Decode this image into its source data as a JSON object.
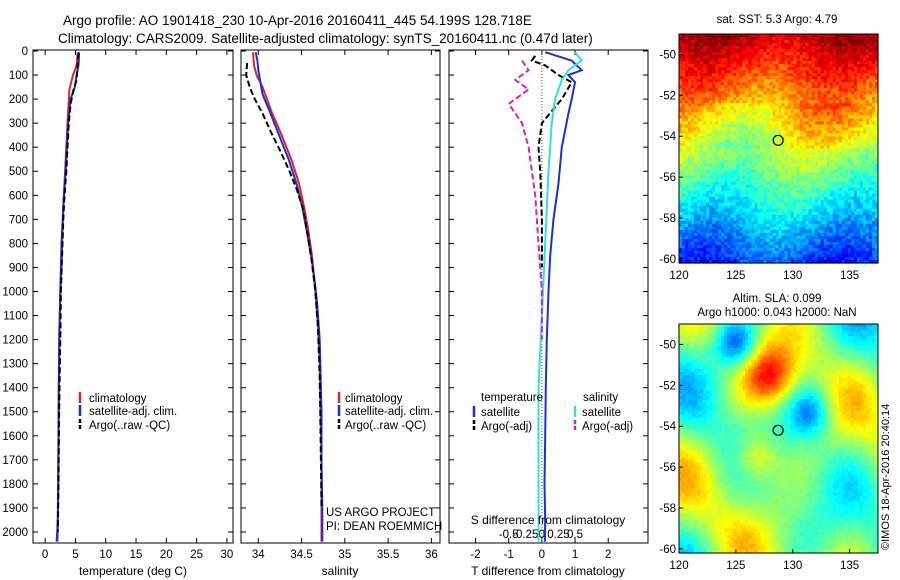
{
  "header": {
    "line1": "Argo profile: AO 1901418_230 10-Apr-2016 20160411_445 54.199S 128.718E",
    "line2": "Climatology: CARS2009. Satellite-adjusted climatology: synTS_20160411.nc (0.47d later)"
  },
  "colors": {
    "climatology": "#e0202a",
    "satellite": "#1a2fd6",
    "argo": "#000000",
    "sat_s": "#30e0e0",
    "argo_s": "#d020d0"
  },
  "depth_ticks": [
    "0",
    "100",
    "200",
    "300",
    "400",
    "500",
    "600",
    "700",
    "800",
    "900",
    "1000",
    "1100",
    "1200",
    "1300",
    "1400",
    "1500",
    "1600",
    "1700",
    "1800",
    "1900",
    "2000"
  ],
  "chart_data": [
    {
      "type": "line",
      "id": "temperature",
      "xlabel": "temperature (deg C)",
      "xlim": [
        -2,
        31
      ],
      "ylim": [
        2050,
        0
      ],
      "xticks": [
        "0",
        "5",
        "10",
        "15",
        "20",
        "25",
        "30"
      ],
      "legend": [
        "climatology",
        "satellite-adj. clim.",
        "Argo(..raw -QC)"
      ],
      "series": [
        {
          "name": "climatology",
          "color": "#e0202a",
          "style": "solid",
          "x": [
            5.4,
            5.2,
            4.6,
            4.0,
            3.8,
            3.6,
            3.4,
            3.2,
            3.0,
            2.8,
            2.7,
            2.5,
            2.4,
            2.3,
            2.25,
            2.2,
            2.15,
            2.1,
            2.05
          ],
          "y": [
            5,
            60,
            100,
            160,
            250,
            350,
            450,
            550,
            650,
            800,
            900,
            1000,
            1100,
            1200,
            1400,
            1600,
            1800,
            1950,
            2040
          ]
        },
        {
          "name": "satellite-adj. clim.",
          "color": "#1a2fd6",
          "style": "solid",
          "x": [
            5.6,
            5.5,
            5.2,
            4.9,
            4.2,
            3.8,
            3.6,
            3.4,
            3.1,
            2.9,
            2.7,
            2.6,
            2.5,
            2.35,
            2.25,
            2.2,
            2.15,
            2.1,
            2.0,
            1.9
          ],
          "y": [
            5,
            60,
            100,
            150,
            200,
            300,
            400,
            500,
            600,
            700,
            800,
            900,
            1000,
            1200,
            1400,
            1600,
            1800,
            1950,
            2000,
            2040
          ]
        },
        {
          "name": "Argo(..raw -QC)",
          "color": "#000000",
          "style": "dash",
          "x": [
            5.5,
            5.4,
            5.3,
            5.2,
            4.7,
            4.2,
            3.9,
            3.7,
            3.5,
            3.2,
            3.0,
            2.8,
            2.6,
            2.5,
            2.3,
            2.2,
            2.1
          ],
          "y": [
            10,
            40,
            80,
            120,
            160,
            220,
            300,
            400,
            500,
            600,
            700,
            850,
            1000,
            1200,
            1500,
            1800,
            2000
          ]
        }
      ]
    },
    {
      "type": "line",
      "id": "salinity",
      "xlabel": "salinity",
      "xlim": [
        33.8,
        36.1
      ],
      "ylim": [
        2050,
        0
      ],
      "xticks": [
        "34",
        "34.5",
        "35",
        "35.5",
        "36"
      ],
      "legend": [
        "climatology",
        "satellite-adj. clim.",
        "Argo(..raw -QC)"
      ],
      "series": [
        {
          "name": "climatology",
          "color": "#e0202a",
          "style": "solid",
          "x": [
            33.94,
            33.95,
            33.98,
            34.05,
            34.15,
            34.27,
            34.38,
            34.47,
            34.53,
            34.58,
            34.62,
            34.66,
            34.69,
            34.71,
            34.72,
            34.73,
            34.73,
            34.73
          ],
          "y": [
            5,
            60,
            100,
            150,
            250,
            350,
            450,
            550,
            650,
            750,
            850,
            1000,
            1150,
            1300,
            1500,
            1700,
            1900,
            2040
          ]
        },
        {
          "name": "satellite-adj. clim.",
          "color": "#1a2fd6",
          "style": "solid",
          "x": [
            33.97,
            33.99,
            34.0,
            34.02,
            34.05,
            34.13,
            34.24,
            34.35,
            34.44,
            34.51,
            34.56,
            34.61,
            34.65,
            34.68,
            34.71,
            34.72,
            34.73,
            34.73,
            34.74,
            34.74
          ],
          "y": [
            5,
            40,
            80,
            120,
            180,
            250,
            350,
            450,
            550,
            650,
            750,
            850,
            950,
            1050,
            1200,
            1350,
            1500,
            1700,
            1900,
            2040
          ]
        },
        {
          "name": "Argo(..raw -QC)",
          "color": "#000000",
          "style": "dash",
          "x": [
            33.87,
            33.86,
            33.9,
            33.96,
            34.05,
            34.15,
            34.26,
            34.36,
            34.45,
            34.52,
            34.57,
            34.62,
            34.66,
            34.69,
            34.71,
            34.72,
            34.73
          ],
          "y": [
            50,
            100,
            150,
            200,
            260,
            340,
            420,
            500,
            580,
            660,
            760,
            880,
            1000,
            1150,
            1350,
            1600,
            1900
          ]
        }
      ]
    },
    {
      "type": "line",
      "id": "difference",
      "xlabel": "T difference from climatology",
      "xlabel2": "S difference from climatology",
      "xlim": [
        -2.8,
        3.2
      ],
      "ylim": [
        2050,
        0
      ],
      "xticks": [
        "-2",
        "-1",
        "0",
        "1",
        "2"
      ],
      "xticks2": [
        "-0.5",
        "-0.25",
        "0",
        "0.25",
        "0.5"
      ],
      "legend_headers": [
        "temperature",
        "salinity"
      ],
      "legend": [
        "satellite",
        "Argo(-adj)",
        "satellite",
        "Argo(-adj)"
      ],
      "series": [
        {
          "name": "satellite",
          "group": "temperature",
          "color": "#1a2fd6",
          "style": "solid",
          "x": [
            0.1,
            0.9,
            1.2,
            0.8,
            1.0,
            0.9,
            0.8,
            0.6,
            0.5,
            0.35,
            0.25,
            0.2,
            0.15,
            0.12,
            0.1,
            0.08,
            0.1,
            0.09
          ],
          "y": [
            5,
            40,
            80,
            100,
            130,
            200,
            260,
            400,
            550,
            700,
            850,
            1000,
            1200,
            1400,
            1600,
            1800,
            1950,
            2040
          ]
        },
        {
          "name": "Argo(-adj)",
          "group": "temperature",
          "color": "#000000",
          "style": "dash",
          "x": [
            -0.2,
            -0.3,
            0.1,
            0.5,
            0.9,
            0.6,
            0.3,
            0.0,
            -0.1,
            -0.05,
            0.0,
            0.0
          ],
          "y": [
            20,
            40,
            60,
            100,
            130,
            200,
            250,
            300,
            400,
            500,
            700,
            900
          ]
        },
        {
          "name": "satellite",
          "group": "salinity",
          "color": "#30e0e0",
          "style": "solid",
          "x": [
            0.5,
            0.6,
            0.4,
            0.3,
            0.2,
            0.15,
            0.1,
            0.05,
            0.0,
            -0.05,
            -0.05,
            -0.05
          ],
          "y": [
            5,
            40,
            80,
            120,
            200,
            300,
            500,
            800,
            1100,
            1400,
            1700,
            2040
          ]
        },
        {
          "name": "Argo(-adj)",
          "group": "salinity",
          "color": "#d020d0",
          "style": "dash",
          "x": [
            -0.3,
            -0.2,
            -0.4,
            -0.2,
            -0.5,
            -0.3,
            -0.2,
            -0.1,
            -0.05,
            0.0,
            0.0
          ],
          "y": [
            40,
            80,
            120,
            160,
            220,
            300,
            400,
            600,
            800,
            1000,
            1200
          ]
        }
      ]
    }
  ],
  "sst_map": {
    "title": "sat. SST: 5.3 Argo: 4.79",
    "xticks": [
      "120",
      "125",
      "130",
      "135"
    ],
    "yticks": [
      "-50",
      "-52",
      "-54",
      "-56",
      "-58",
      "-60"
    ],
    "marker": {
      "lon": 128.718,
      "lat": -54.199
    }
  },
  "sla_map": {
    "title1": "Altim. SLA: 0.099",
    "title2": "Argo h1000: 0.043 h2000: NaN",
    "xticks": [
      "120",
      "125",
      "130",
      "135"
    ],
    "yticks": [
      "-50",
      "-52",
      "-54",
      "-56",
      "-58",
      "-60"
    ],
    "marker": {
      "lon": 128.718,
      "lat": -54.199
    }
  },
  "credits": {
    "project": "US ARGO PROJECT",
    "pi": "PI: DEAN ROEMMICH",
    "stamp": "©IMOS 18-Apr-2016 20:40:14"
  }
}
